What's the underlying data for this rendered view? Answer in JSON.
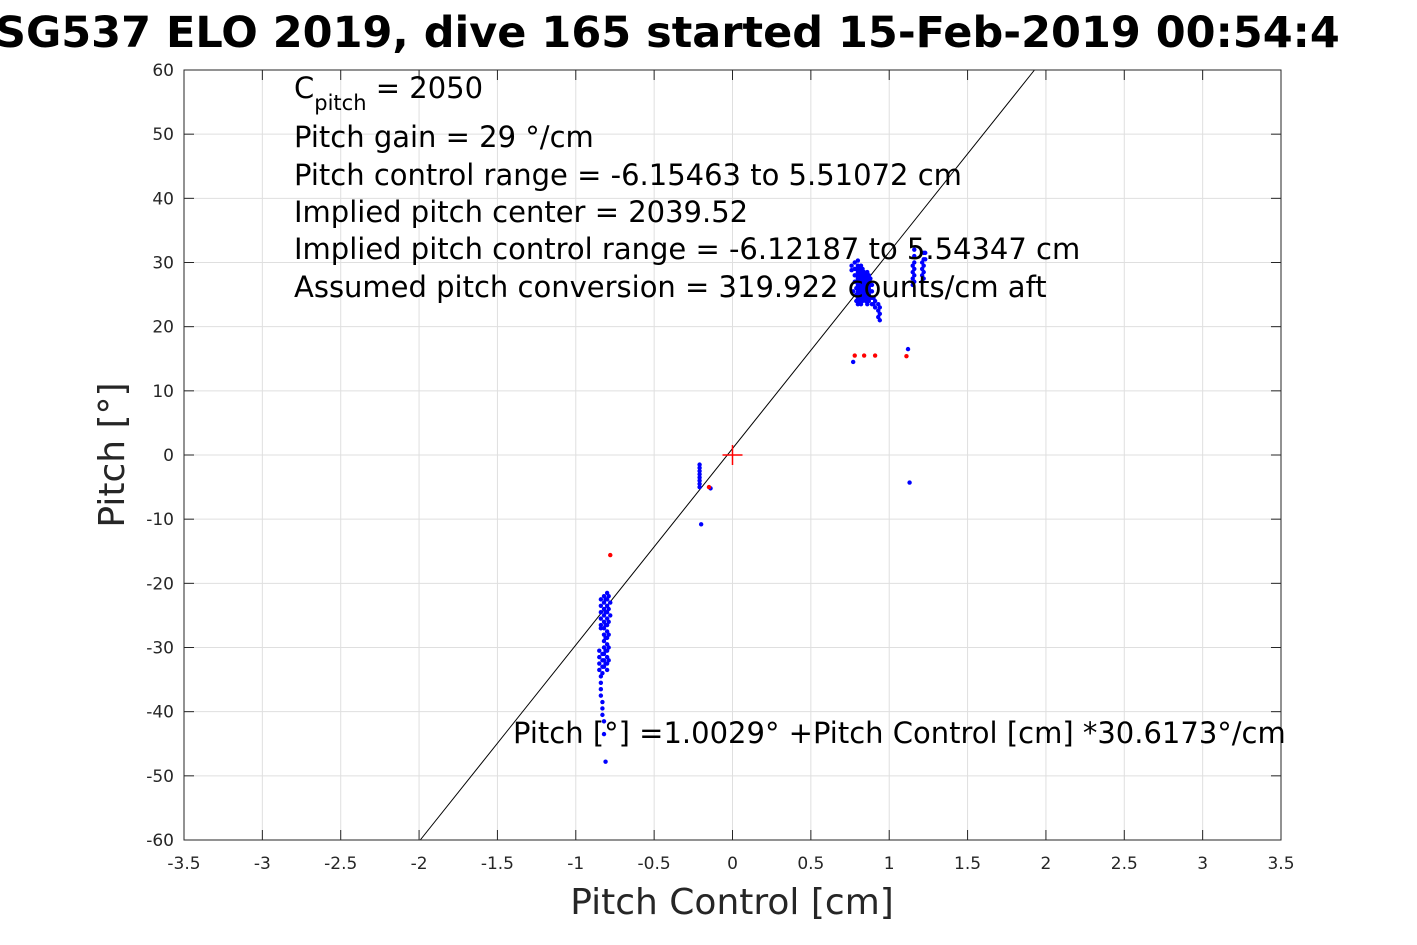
{
  "chart_data": {
    "type": "scatter",
    "title": "SG537 ELO 2019, dive 165 started 15-Feb-2019 00:54:4",
    "xlabel": "Pitch Control [cm]",
    "ylabel": "Pitch [°]",
    "xlim": [
      -3.5,
      3.5
    ],
    "ylim": [
      -60,
      60
    ],
    "grid": true,
    "x_ticks": [
      -3.5,
      -3,
      -2.5,
      -2,
      -1.5,
      -1,
      -0.5,
      0,
      0.5,
      1,
      1.5,
      2,
      2.5,
      3,
      3.5
    ],
    "x_tick_labels": [
      "-3.5",
      "-3",
      "-2.5",
      "-2",
      "-1.5",
      "-1",
      "-0.5",
      "0",
      "0.5",
      "1",
      "1.5",
      "2",
      "2.5",
      "3",
      "3.5"
    ],
    "y_ticks": [
      60,
      50,
      40,
      30,
      20,
      10,
      0,
      -10,
      -20,
      -30,
      -40,
      -50,
      -60
    ],
    "y_tick_labels": [
      "60",
      "50",
      "40",
      "30",
      "20",
      "10",
      "0",
      "-10",
      "-20",
      "-30",
      "-40",
      "-50",
      "-60"
    ],
    "annotations": {
      "cpitch_base": "C",
      "cpitch_sub": "pitch",
      "cpitch_value": " = 2050",
      "gain": "Pitch gain = 29 °/cm",
      "control_range": "Pitch control range = -6.15463 to 5.51072 cm",
      "implied_center": "Implied pitch center = 2039.52",
      "implied_range": "Implied pitch control range = -6.12187 to 5.54347 cm",
      "conversion": "Assumed pitch conversion = 319.922 counts/cm aft",
      "fit": "Pitch [°] =1.0029° +Pitch Control [cm] *30.6173°/cm"
    },
    "fit_line": {
      "intercept": 1.0029,
      "slope": 30.6173
    },
    "center_marker": {
      "x": 0,
      "y": 0,
      "color": "#ff0000"
    },
    "series": [
      {
        "color": "#0000ff",
        "points": [
          [
            -0.84,
            -22.5
          ],
          [
            -0.84,
            -23.5
          ],
          [
            -0.84,
            -24.5
          ],
          [
            -0.84,
            -25.5
          ],
          [
            -0.84,
            -26.5
          ],
          [
            -0.84,
            -27.0
          ],
          [
            -0.85,
            -30.5
          ],
          [
            -0.85,
            -31.5
          ],
          [
            -0.85,
            -32.5
          ],
          [
            -0.85,
            -33.5
          ],
          [
            -0.84,
            -34.5
          ],
          [
            -0.84,
            -35.5
          ],
          [
            -0.84,
            -36.5
          ],
          [
            -0.84,
            -37.5
          ],
          [
            -0.83,
            -38.5
          ],
          [
            -0.83,
            -39.5
          ],
          [
            -0.83,
            -40.5
          ],
          [
            -0.82,
            -41.5
          ],
          [
            -0.82,
            -43.5
          ],
          [
            -0.81,
            -47.8
          ],
          [
            -0.83,
            -31.0
          ],
          [
            -0.83,
            -32.0
          ],
          [
            -0.83,
            -33.0
          ],
          [
            -0.83,
            -34.0
          ],
          [
            -0.82,
            -22.0
          ],
          [
            -0.82,
            -23.0
          ],
          [
            -0.82,
            -24.0
          ],
          [
            -0.82,
            -25.0
          ],
          [
            -0.82,
            -26.0
          ],
          [
            -0.82,
            -27.0
          ],
          [
            -0.82,
            -28.0
          ],
          [
            -0.82,
            -29.0
          ],
          [
            -0.82,
            -30.0
          ],
          [
            -0.82,
            -31.0
          ],
          [
            -0.82,
            -32.0
          ],
          [
            -0.82,
            -33.0
          ],
          [
            -0.81,
            -22.5
          ],
          [
            -0.81,
            -24.5
          ],
          [
            -0.81,
            -26.5
          ],
          [
            -0.81,
            -28.5
          ],
          [
            -0.81,
            -30.5
          ],
          [
            -0.81,
            -32.5
          ],
          [
            -0.8,
            -21.5
          ],
          [
            -0.8,
            -22.5
          ],
          [
            -0.8,
            -23.5
          ],
          [
            -0.8,
            -24.5
          ],
          [
            -0.8,
            -25.5
          ],
          [
            -0.8,
            -26.5
          ],
          [
            -0.8,
            -27.5
          ],
          [
            -0.8,
            -28.5
          ],
          [
            -0.8,
            -29.5
          ],
          [
            -0.8,
            -30.5
          ],
          [
            -0.8,
            -31.5
          ],
          [
            -0.8,
            -32.5
          ],
          [
            -0.8,
            -33.5
          ],
          [
            -0.79,
            -22.0
          ],
          [
            -0.79,
            -24.0
          ],
          [
            -0.79,
            -26.0
          ],
          [
            -0.79,
            -28.0
          ],
          [
            -0.79,
            -30.0
          ],
          [
            -0.79,
            -32.0
          ],
          [
            -0.78,
            -23.0
          ],
          [
            -0.78,
            -25.0
          ],
          [
            -0.21,
            -1.5
          ],
          [
            -0.21,
            -2.0
          ],
          [
            -0.21,
            -2.5
          ],
          [
            -0.21,
            -3.0
          ],
          [
            -0.21,
            -3.5
          ],
          [
            -0.21,
            -4.0
          ],
          [
            -0.21,
            -4.5
          ],
          [
            -0.21,
            -5.0
          ],
          [
            -0.2,
            -10.8
          ],
          [
            -0.14,
            -5.2
          ],
          [
            0.76,
            29.5
          ],
          [
            0.76,
            28.8
          ],
          [
            0.77,
            14.5
          ],
          [
            0.77,
            25.5
          ],
          [
            0.78,
            27.0
          ],
          [
            0.78,
            28.0
          ],
          [
            0.78,
            29.0
          ],
          [
            0.78,
            30.0
          ],
          [
            0.79,
            24.0
          ],
          [
            0.79,
            25.0
          ],
          [
            0.79,
            26.0
          ],
          [
            0.79,
            27.0
          ],
          [
            0.79,
            28.0
          ],
          [
            0.79,
            29.0
          ],
          [
            0.8,
            23.5
          ],
          [
            0.8,
            24.5
          ],
          [
            0.8,
            25.5
          ],
          [
            0.8,
            26.5
          ],
          [
            0.8,
            27.5
          ],
          [
            0.8,
            28.5
          ],
          [
            0.8,
            29.5
          ],
          [
            0.8,
            30.3
          ],
          [
            0.81,
            24.0
          ],
          [
            0.81,
            25.0
          ],
          [
            0.81,
            26.0
          ],
          [
            0.81,
            27.0
          ],
          [
            0.81,
            28.0
          ],
          [
            0.81,
            29.0
          ],
          [
            0.82,
            23.5
          ],
          [
            0.82,
            24.5
          ],
          [
            0.82,
            25.5
          ],
          [
            0.82,
            26.5
          ],
          [
            0.82,
            27.5
          ],
          [
            0.82,
            28.5
          ],
          [
            0.82,
            29.5
          ],
          [
            0.83,
            24.0
          ],
          [
            0.83,
            25.0
          ],
          [
            0.83,
            26.0
          ],
          [
            0.83,
            27.0
          ],
          [
            0.83,
            28.0
          ],
          [
            0.83,
            29.0
          ],
          [
            0.84,
            24.5
          ],
          [
            0.84,
            25.5
          ],
          [
            0.84,
            26.5
          ],
          [
            0.84,
            27.5
          ],
          [
            0.84,
            28.5
          ],
          [
            0.85,
            24.0
          ],
          [
            0.85,
            25.0
          ],
          [
            0.85,
            26.0
          ],
          [
            0.85,
            27.0
          ],
          [
            0.85,
            28.0
          ],
          [
            0.86,
            23.5
          ],
          [
            0.86,
            24.5
          ],
          [
            0.86,
            25.5
          ],
          [
            0.86,
            26.5
          ],
          [
            0.86,
            27.5
          ],
          [
            0.86,
            28.5
          ],
          [
            0.87,
            24.0
          ],
          [
            0.87,
            25.0
          ],
          [
            0.87,
            26.0
          ],
          [
            0.87,
            27.0
          ],
          [
            0.87,
            28.0
          ],
          [
            0.88,
            24.5
          ],
          [
            0.88,
            25.5
          ],
          [
            0.88,
            26.5
          ],
          [
            0.88,
            27.5
          ],
          [
            0.89,
            23.5
          ],
          [
            0.89,
            24.5
          ],
          [
            0.89,
            25.5
          ],
          [
            0.89,
            26.5
          ],
          [
            0.9,
            23.5
          ],
          [
            0.9,
            24.5
          ],
          [
            0.91,
            23.0
          ],
          [
            0.91,
            24.0
          ],
          [
            0.93,
            21.5
          ],
          [
            0.93,
            22.5
          ],
          [
            0.93,
            23.5
          ],
          [
            0.94,
            21.0
          ],
          [
            0.94,
            22.0
          ],
          [
            0.94,
            23.0
          ],
          [
            1.12,
            16.5
          ],
          [
            1.13,
            -4.3
          ],
          [
            1.15,
            26.5
          ],
          [
            1.15,
            27.5
          ],
          [
            1.15,
            28.5
          ],
          [
            1.15,
            29.5
          ],
          [
            1.16,
            27.0
          ],
          [
            1.16,
            28.0
          ],
          [
            1.16,
            29.0
          ],
          [
            1.16,
            30.0
          ],
          [
            1.16,
            31.0
          ],
          [
            1.16,
            32.0
          ],
          [
            1.21,
            27.0
          ],
          [
            1.21,
            28.0
          ],
          [
            1.21,
            29.0
          ],
          [
            1.21,
            30.0
          ],
          [
            1.22,
            27.5
          ],
          [
            1.22,
            28.5
          ],
          [
            1.22,
            29.5
          ],
          [
            1.22,
            30.5
          ],
          [
            1.22,
            31.5
          ],
          [
            1.23,
            30.5
          ],
          [
            1.23,
            31.5
          ]
        ]
      },
      {
        "color": "#ff0000",
        "points": [
          [
            -0.78,
            -15.6
          ],
          [
            -0.15,
            -5.0
          ],
          [
            0.78,
            15.5
          ],
          [
            0.84,
            15.5
          ],
          [
            0.91,
            15.5
          ],
          [
            1.11,
            15.4
          ]
        ]
      }
    ]
  }
}
